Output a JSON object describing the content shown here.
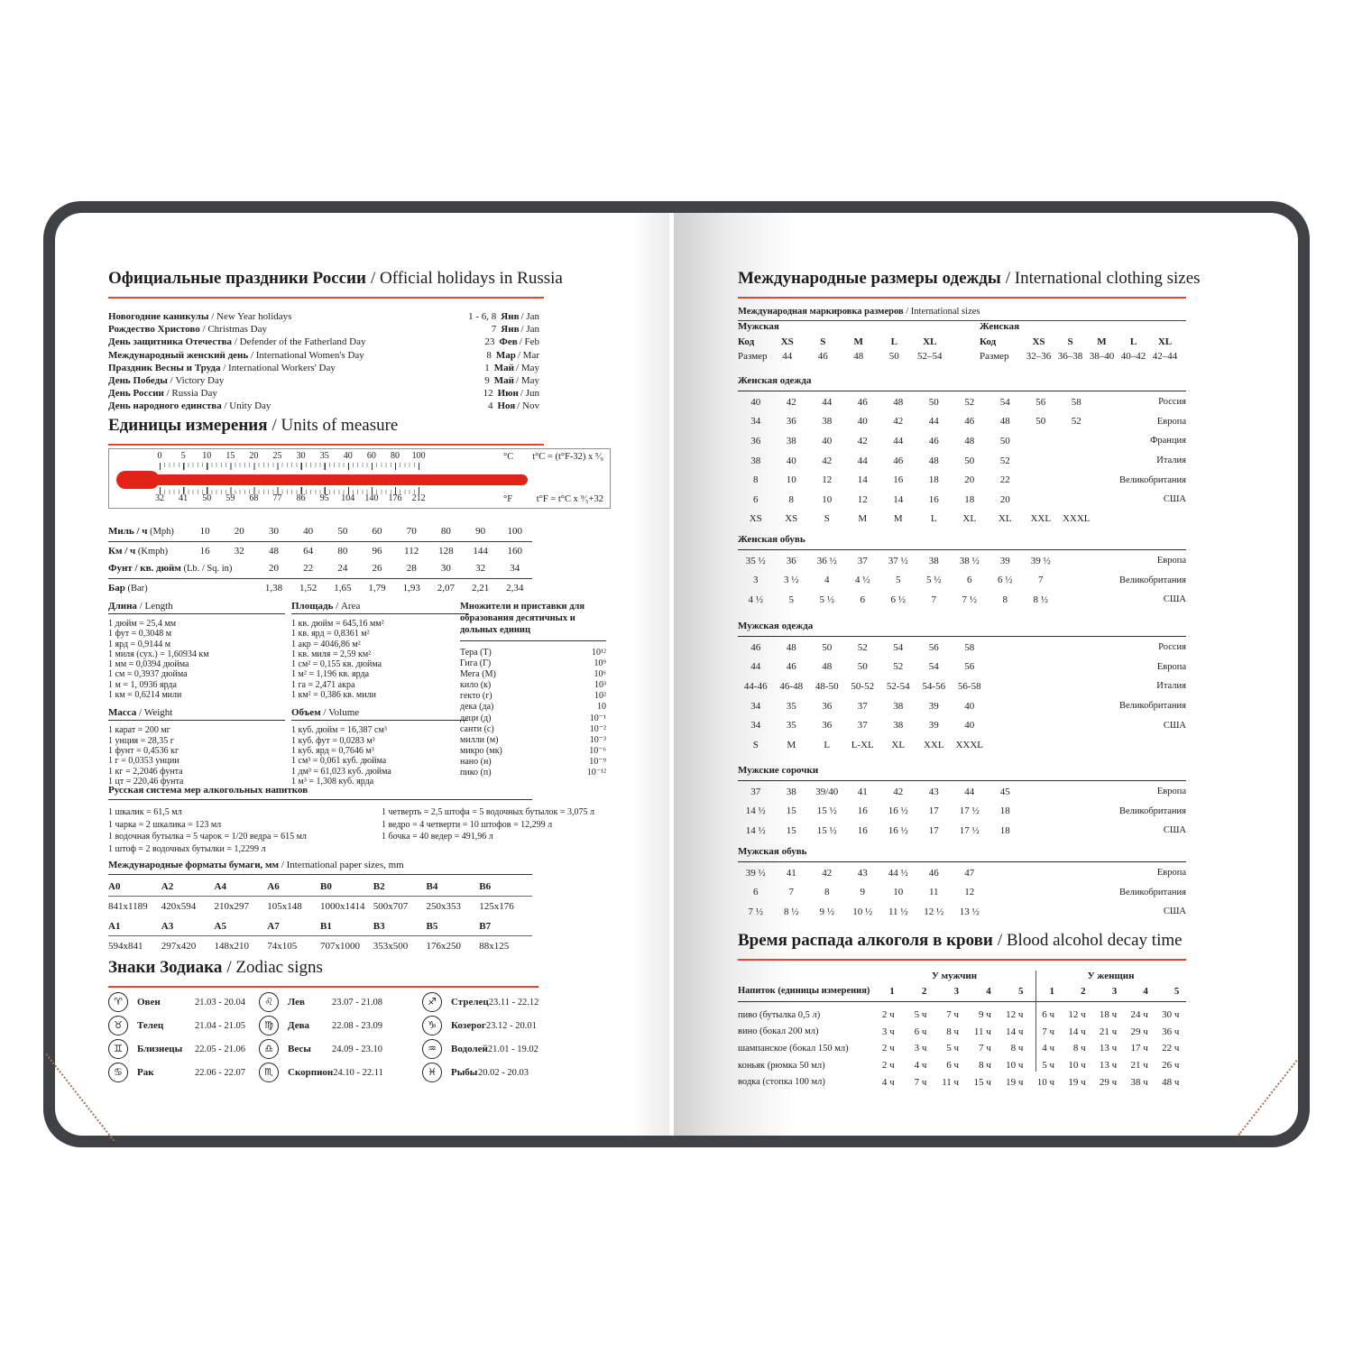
{
  "colors": {
    "accent": "#e8432e",
    "mercury": "#e2231a",
    "cover": "#3e4245",
    "stitch": "#a9714e",
    "text": "#1d1d1b"
  },
  "left_page": {
    "holidays": {
      "title_ru": "Официальные праздники России",
      "title_en": "/ Official holidays in Russia",
      "rows": [
        {
          "ru": "Новогодние каникулы",
          "en": "/ New Year holidays",
          "day": "1 - 6, 8",
          "mon": "Янв",
          "mon_en": "/ Jan"
        },
        {
          "ru": "Рождество Христово",
          "en": "/ Christmas Day",
          "day": "7",
          "mon": "Янв",
          "mon_en": "/ Jan"
        },
        {
          "ru": "День защитника Отечества",
          "en": "/ Defender of the Fatherland Day",
          "day": "23",
          "mon": "Фев",
          "mon_en": "/ Feb"
        },
        {
          "ru": "Международный женский день",
          "en": "/ International Women's Day",
          "day": "8",
          "mon": "Мар",
          "mon_en": "/ Mar"
        },
        {
          "ru": "Праздник Весны и Труда",
          "en": "/ International Workers' Day",
          "day": "1",
          "mon": "Май",
          "mon_en": "/ May"
        },
        {
          "ru": "День Победы",
          "en": "/ Victory Day",
          "day": "9",
          "mon": "Май",
          "mon_en": "/ May"
        },
        {
          "ru": "День России",
          "en": "/ Russia Day",
          "day": "12",
          "mon": "Июн",
          "mon_en": "/ Jun"
        },
        {
          "ru": "День народного единства",
          "en": "/ Unity Day",
          "day": "4",
          "mon": "Ноя",
          "mon_en": "/ Nov"
        }
      ]
    },
    "units": {
      "title_ru": "Единицы измерения",
      "title_en": "/ Units of measure",
      "thermometer": {
        "c_labels": [
          "0",
          "5",
          "10",
          "15",
          "20",
          "25",
          "30",
          "35",
          "40",
          "60",
          "80",
          "100"
        ],
        "c_unit": "°C",
        "c_formula": "t°C = (t°F-32) x ⁵⁄₉",
        "f_labels": [
          "32",
          "41",
          "50",
          "59",
          "68",
          "77",
          "86",
          "95",
          "104",
          "140",
          "176",
          "212"
        ],
        "f_unit": "°F",
        "f_formula": "t°F = t°C x ⁹⁄₅+32"
      },
      "speed": {
        "rows": [
          {
            "label_ru": "Миль / ч",
            "label_en": "(Mph)",
            "values": [
              "10",
              "20",
              "30",
              "40",
              "50",
              "60",
              "70",
              "80",
              "90",
              "100"
            ]
          },
          {
            "label_ru": "Км / ч",
            "label_en": "(Kmph)",
            "values": [
              "16",
              "32",
              "48",
              "64",
              "80",
              "96",
              "112",
              "128",
              "144",
              "160"
            ]
          }
        ]
      },
      "pressure": {
        "rows": [
          {
            "label_ru": "Фунт / кв. дюйм",
            "label_en": "(Lb. / Sq. in)",
            "values": [
              "20",
              "22",
              "24",
              "26",
              "28",
              "30",
              "32",
              "34"
            ]
          },
          {
            "label_ru": "Бар",
            "label_en": "(Bar)",
            "values": [
              "1,38",
              "1,52",
              "1,65",
              "1,79",
              "1,93",
              "2,07",
              "2,21",
              "2,34"
            ]
          }
        ]
      },
      "conversions": [
        {
          "title_ru": "Длина",
          "title_en": "/ Length",
          "lines": [
            "1 дюйм = 25,4 мм",
            "1 фут = 0,3048 м",
            "1 ярд = 0,9144 м",
            "1 миля (сух.) = 1,60934 км",
            "1 мм = 0,0394 дюйма",
            "1 см = 0,3937 дюйма",
            "1 м = 1, 0936 ярда",
            "1 км = 0,6214 мили"
          ]
        },
        {
          "title_ru": "Площадь",
          "title_en": "/ Area",
          "lines": [
            "1 кв. дюйм = 645,16 мм²",
            "1 кв. ярд = 0,8361 м²",
            "1 акр = 4046,86 м²",
            "1 кв. миля = 2,59 км²",
            "1 см² = 0,155 кв. дюйма",
            "1 м² = 1,196 кв. ярда",
            "1 га = 2,471 акра",
            "1 км² = 0,386 кв. мили"
          ]
        },
        {
          "title_ru": "Масса",
          "title_en": "/ Weight",
          "lines": [
            "1 карат = 200 мг",
            "1 унция = 28,35 г",
            "1 фунт = 0,4536 кг",
            "1 г = 0,0353 унции",
            "1 кг = 2,2046 фунта",
            "1 цт = 220,46 фунта"
          ]
        },
        {
          "title_ru": "Объем",
          "title_en": "/ Volume",
          "lines": [
            "1 куб. дюйм = 16,387 см³",
            "1 куб. фут = 0,0283 м³",
            "1 куб. ярд = 0,7646 м³",
            "1 см³ = 0,061 куб. дюйма",
            "1 дм³ = 61,023 куб. дюйма",
            "1 м³ = 1,308 куб. ярда"
          ]
        }
      ],
      "prefixes": {
        "title": "Множители и приставки для образования десятичных и дольных единиц",
        "rows": [
          {
            "name": "Тера (Т)",
            "value": "10¹²"
          },
          {
            "name": "Гига (Г)",
            "value": "10⁹"
          },
          {
            "name": "Мега (М)",
            "value": "10⁶"
          },
          {
            "name": "кило (к)",
            "value": "10³"
          },
          {
            "name": "гекто (г)",
            "value": "10²"
          },
          {
            "name": "дека (да)",
            "value": "10"
          },
          {
            "name": "деци (д)",
            "value": "10⁻¹"
          },
          {
            "name": "санти (с)",
            "value": "10⁻²"
          },
          {
            "name": "милли (м)",
            "value": "10⁻³"
          },
          {
            "name": "микро (мк)",
            "value": "10⁻⁶"
          },
          {
            "name": "нано (н)",
            "value": "10⁻⁹"
          },
          {
            "name": "пико (п)",
            "value": "10⁻¹²"
          }
        ]
      }
    },
    "alcohol_measures": {
      "title": "Русская система мер алкогольных напитков",
      "col1": [
        "1 шкалик = 61,5 мл",
        "1 чарка = 2 шкалика = 123 мл",
        "1 водочная бутылка = 5 чарок = 1/20 ведра = 615 мл",
        "1 штоф = 2 водочных бутылки = 1,2299 л"
      ],
      "col2": [
        "1 четверть = 2,5 штофа = 5 водочных бутылок = 3,075 л",
        "1 ведро = 4 четверти = 10 штофов = 12,299 л",
        "1 бочка = 40 ведер = 491,96 л"
      ]
    },
    "paper": {
      "title_ru": "Международные форматы бумаги, мм",
      "title_en": "/ International paper sizes, mm",
      "groups": [
        [
          {
            "code": "A0",
            "size": "841x1189"
          },
          {
            "code": "A2",
            "size": "420x594"
          },
          {
            "code": "A4",
            "size": "210x297"
          },
          {
            "code": "A6",
            "size": "105x148"
          },
          {
            "code": "B0",
            "size": "1000x1414"
          },
          {
            "code": "B2",
            "size": "500x707"
          },
          {
            "code": "B4",
            "size": "250x353"
          },
          {
            "code": "B6",
            "size": "125x176"
          }
        ],
        [
          {
            "code": "A1",
            "size": "594x841"
          },
          {
            "code": "A3",
            "size": "297x420"
          },
          {
            "code": "A5",
            "size": "148x210"
          },
          {
            "code": "A7",
            "size": "74x105"
          },
          {
            "code": "B1",
            "size": "707x1000"
          },
          {
            "code": "B3",
            "size": "353x500"
          },
          {
            "code": "B5",
            "size": "176x250"
          },
          {
            "code": "B7",
            "size": "88x125"
          }
        ]
      ]
    },
    "zodiac": {
      "title_ru": "Знаки Зодиака",
      "title_en": "/ Zodiac signs",
      "columns": [
        [
          {
            "glyph": "♈",
            "name": "Овен",
            "dates": "21.03 - 20.04"
          },
          {
            "glyph": "♉",
            "name": "Телец",
            "dates": "21.04 - 21.05"
          },
          {
            "glyph": "♊",
            "name": "Близнецы",
            "dates": "22.05 - 21.06"
          },
          {
            "glyph": "♋",
            "name": "Рак",
            "dates": "22.06 - 22.07"
          }
        ],
        [
          {
            "glyph": "♌",
            "name": "Лев",
            "dates": "23.07 - 21.08"
          },
          {
            "glyph": "♍",
            "name": "Дева",
            "dates": "22.08 - 23.09"
          },
          {
            "glyph": "♎",
            "name": "Весы",
            "dates": "24.09 - 23.10"
          },
          {
            "glyph": "♏",
            "name": "Скорпион",
            "dates": "24.10 - 22.11"
          }
        ],
        [
          {
            "glyph": "♐",
            "name": "Стрелец",
            "dates": "23.11 - 22.12"
          },
          {
            "glyph": "♑",
            "name": "Козерог",
            "dates": "23.12 - 20.01"
          },
          {
            "glyph": "♒",
            "name": "Водолей",
            "dates": "21.01 - 19.02"
          },
          {
            "glyph": "♓",
            "name": "Рыбы",
            "dates": "20.02 - 20.03"
          }
        ]
      ]
    }
  },
  "right_page": {
    "clothing": {
      "title_ru": "Международные размеры одежды",
      "title_en": "/ International clothing sizes",
      "marking": {
        "subtitle_ru": "Международная маркировка размеров",
        "subtitle_en": "/ International sizes",
        "men": {
          "group": "Мужская",
          "code_label": "Код",
          "size_label": "Размер",
          "codes": [
            "XS",
            "S",
            "M",
            "L",
            "XL"
          ],
          "sizes": [
            "44",
            "46",
            "48",
            "50",
            "52–54"
          ]
        },
        "women": {
          "group": "Женская",
          "code_label": "Код",
          "size_label": "Размер",
          "codes": [
            "XS",
            "S",
            "M",
            "L",
            "XL"
          ],
          "sizes": [
            "32–36",
            "36–38",
            "38–40",
            "40–42",
            "42–44"
          ]
        }
      },
      "sections": [
        {
          "title": "Женская одежда",
          "rows": [
            {
              "values": [
                "40",
                "42",
                "44",
                "46",
                "48",
                "50",
                "52",
                "54",
                "56",
                "58"
              ],
              "country": "Россия"
            },
            {
              "values": [
                "34",
                "36",
                "38",
                "40",
                "42",
                "44",
                "46",
                "48",
                "50",
                "52"
              ],
              "country": "Европа"
            },
            {
              "values": [
                "36",
                "38",
                "40",
                "42",
                "44",
                "46",
                "48",
                "50"
              ],
              "country": "Франция"
            },
            {
              "values": [
                "38",
                "40",
                "42",
                "44",
                "46",
                "48",
                "50",
                "52"
              ],
              "country": "Италия"
            },
            {
              "values": [
                "8",
                "10",
                "12",
                "14",
                "16",
                "18",
                "20",
                "22"
              ],
              "country": "Великобритания"
            },
            {
              "values": [
                "6",
                "8",
                "10",
                "12",
                "14",
                "16",
                "18",
                "20"
              ],
              "country": "США"
            },
            {
              "values": [
                "XS",
                "XS",
                "S",
                "M",
                "M",
                "L",
                "XL",
                "XL",
                "XXL",
                "XXXL"
              ],
              "country": ""
            }
          ]
        },
        {
          "title": "Женская обувь",
          "rows": [
            {
              "values": [
                "35 ½",
                "36",
                "36 ½",
                "37",
                "37 ½",
                "38",
                "38 ½",
                "39",
                "39 ½"
              ],
              "country": "Европа"
            },
            {
              "values": [
                "3",
                "3 ½",
                "4",
                "4 ½",
                "5",
                "5 ½",
                "6",
                "6 ½",
                "7"
              ],
              "country": "Великобритания"
            },
            {
              "values": [
                "4 ½",
                "5",
                "5 ½",
                "6",
                "6 ½",
                "7",
                "7 ½",
                "8",
                "8 ½"
              ],
              "country": "США"
            }
          ]
        },
        {
          "title": "Мужская одежда",
          "rows": [
            {
              "values": [
                "46",
                "48",
                "50",
                "52",
                "54",
                "56",
                "58"
              ],
              "country": "Россия"
            },
            {
              "values": [
                "44",
                "46",
                "48",
                "50",
                "52",
                "54",
                "56"
              ],
              "country": "Европа"
            },
            {
              "values": [
                "44-46",
                "46-48",
                "48-50",
                "50-52",
                "52-54",
                "54-56",
                "56-58"
              ],
              "country": "Италия"
            },
            {
              "values": [
                "34",
                "35",
                "36",
                "37",
                "38",
                "39",
                "40"
              ],
              "country": "Великобритания"
            },
            {
              "values": [
                "34",
                "35",
                "36",
                "37",
                "38",
                "39",
                "40"
              ],
              "country": "США"
            },
            {
              "values": [
                "S",
                "M",
                "L",
                "L-XL",
                "XL",
                "XXL",
                "XXXL"
              ],
              "country": ""
            }
          ]
        },
        {
          "title": "Мужские сорочки",
          "rows": [
            {
              "values": [
                "37",
                "38",
                "39/40",
                "41",
                "42",
                "43",
                "44",
                "45"
              ],
              "country": "Европа"
            },
            {
              "values": [
                "14 ½",
                "15",
                "15 ½",
                "16",
                "16 ½",
                "17",
                "17 ½",
                "18"
              ],
              "country": "Великобритания"
            },
            {
              "values": [
                "14 ½",
                "15",
                "15 ½",
                "16",
                "16 ½",
                "17",
                "17 ½",
                "18"
              ],
              "country": "США"
            }
          ]
        },
        {
          "title": "Мужская обувь",
          "rows": [
            {
              "values": [
                "39 ½",
                "41",
                "42",
                "43",
                "44 ½",
                "46",
                "47"
              ],
              "country": "Европа"
            },
            {
              "values": [
                "6",
                "7",
                "8",
                "9",
                "10",
                "11",
                "12"
              ],
              "country": "Великобритания"
            },
            {
              "values": [
                "7 ½",
                "8 ½",
                "9 ½",
                "10 ½",
                "11 ½",
                "12 ½",
                "13 ½"
              ],
              "country": "США"
            }
          ]
        }
      ]
    },
    "decay": {
      "title_ru": "Время распада алкоголя в крови",
      "title_en": "/ Blood alcohol decay time",
      "men_header": "У мужчин",
      "women_header": "У женщин",
      "drink_header": "Напиток (единицы измерения)",
      "units": [
        "1",
        "2",
        "3",
        "4",
        "5"
      ],
      "rows": [
        {
          "drink": "пиво (бутылка 0,5 л)",
          "men": [
            "2 ч",
            "5 ч",
            "7 ч",
            "9 ч",
            "12 ч"
          ],
          "women": [
            "6 ч",
            "12 ч",
            "18 ч",
            "24 ч",
            "30 ч"
          ]
        },
        {
          "drink": "вино (бокал 200 мл)",
          "men": [
            "3 ч",
            "6 ч",
            "8 ч",
            "11 ч",
            "14 ч"
          ],
          "women": [
            "7 ч",
            "14 ч",
            "21 ч",
            "29 ч",
            "36 ч"
          ]
        },
        {
          "drink": "шампанское (бокал 150 мл)",
          "men": [
            "2 ч",
            "3 ч",
            "5 ч",
            "7 ч",
            "8 ч"
          ],
          "women": [
            "4 ч",
            "8 ч",
            "13 ч",
            "17 ч",
            "22 ч"
          ]
        },
        {
          "drink": "коньяк (рюмка 50 мл)",
          "men": [
            "2 ч",
            "4 ч",
            "6 ч",
            "8 ч",
            "10 ч"
          ],
          "women": [
            "5 ч",
            "10 ч",
            "13 ч",
            "21 ч",
            "26 ч"
          ]
        },
        {
          "drink": "водка (стопка 100 мл)",
          "men": [
            "4 ч",
            "7 ч",
            "11 ч",
            "15 ч",
            "19 ч"
          ],
          "women": [
            "10 ч",
            "19 ч",
            "29 ч",
            "38 ч",
            "48 ч"
          ]
        }
      ]
    }
  }
}
